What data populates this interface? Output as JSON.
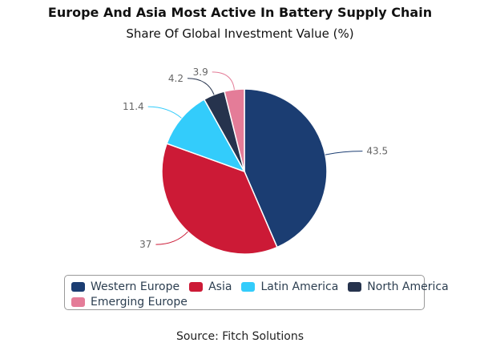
{
  "chart_data": {
    "type": "pie",
    "title": "Europe And Asia Most Active In Battery Supply Chain",
    "subtitle": "Share Of Global Investment Value (%)",
    "categories": [
      "Western Europe",
      "Asia",
      "Latin America",
      "North America",
      "Emerging Europe"
    ],
    "values": [
      43.5,
      37,
      11.4,
      4.2,
      3.9
    ],
    "data_labels": [
      "43.5",
      "37",
      "11.4",
      "4.2",
      "3.9"
    ],
    "colors": [
      "#1b3d72",
      "#cc1a36",
      "#33ccfb",
      "#26334d",
      "#e47c98"
    ],
    "legend_placement": "bottom",
    "source": "Source: Fitch Solutions"
  }
}
